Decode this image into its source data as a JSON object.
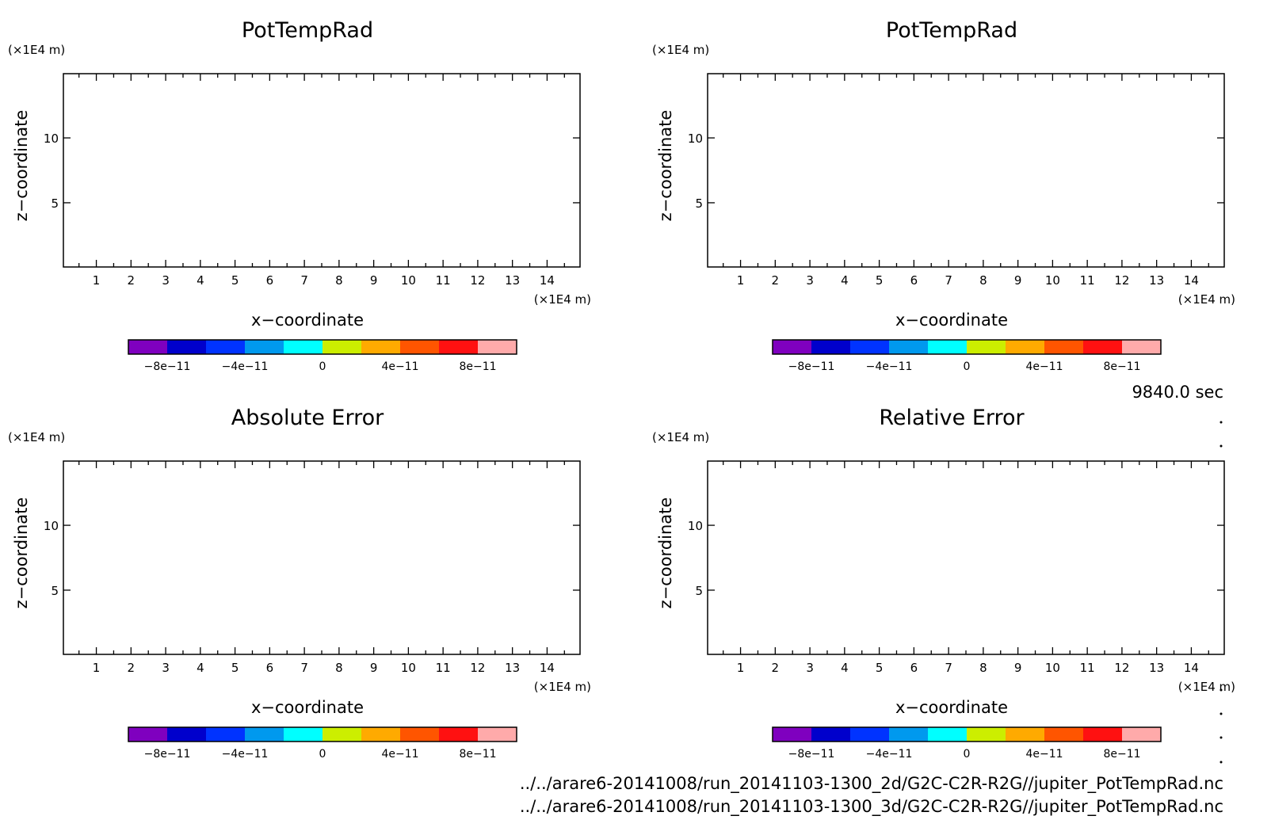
{
  "time_label": "9840.0 sec",
  "files": [
    "../../arare6-20141008/run_20141103-1300_2d/G2C-C2R-R2G//jupiter_PotTempRad.nc",
    "../../arare6-20141008/run_20141103-1300_3d/G2C-C2R-R2G//jupiter_PotTempRad.nc"
  ],
  "colorbar": {
    "colors": [
      "#7f00bf",
      "#0000cc",
      "#0033ff",
      "#0099ee",
      "#00ffff",
      "#ccee00",
      "#ffaa00",
      "#ff5500",
      "#ff1111",
      "#ffaaaa"
    ],
    "min": -1e-10,
    "max": 1e-10,
    "tick_values": [
      -8e-11,
      -4e-11,
      0,
      4e-11,
      8e-11
    ],
    "tick_labels": [
      "−8e−11",
      "−4e−11",
      "0",
      "4e−11",
      "8e−11"
    ]
  },
  "chart_data": [
    {
      "type": "heatmap",
      "title": "PotTempRad",
      "xlabel": "x−coordinate",
      "ylabel": "z−coordinate",
      "x_unit": "(×1E4 m)",
      "y_unit": "(×1E4 m)",
      "xlim": [
        0.05,
        14.95
      ],
      "ylim": [
        0.05,
        14.95
      ],
      "x_ticks": [
        1,
        2,
        3,
        4,
        5,
        6,
        7,
        8,
        9,
        10,
        11,
        12,
        13,
        14
      ],
      "y_ticks": [
        5,
        10
      ],
      "values": []
    },
    {
      "type": "heatmap",
      "title": "PotTempRad",
      "xlabel": "x−coordinate",
      "ylabel": "z−coordinate",
      "x_unit": "(×1E4 m)",
      "y_unit": "(×1E4 m)",
      "xlim": [
        0.05,
        14.95
      ],
      "ylim": [
        0.05,
        14.95
      ],
      "x_ticks": [
        1,
        2,
        3,
        4,
        5,
        6,
        7,
        8,
        9,
        10,
        11,
        12,
        13,
        14
      ],
      "y_ticks": [
        5,
        10
      ],
      "values": []
    },
    {
      "type": "heatmap",
      "title": "Absolute Error",
      "xlabel": "x−coordinate",
      "ylabel": "z−coordinate",
      "x_unit": "(×1E4 m)",
      "y_unit": "(×1E4 m)",
      "xlim": [
        0.05,
        14.95
      ],
      "ylim": [
        0.05,
        14.95
      ],
      "x_ticks": [
        1,
        2,
        3,
        4,
        5,
        6,
        7,
        8,
        9,
        10,
        11,
        12,
        13,
        14
      ],
      "y_ticks": [
        5,
        10
      ],
      "values": []
    },
    {
      "type": "heatmap",
      "title": "Relative Error",
      "xlabel": "x−coordinate",
      "ylabel": "z−coordinate",
      "x_unit": "(×1E4 m)",
      "y_unit": "(×1E4 m)",
      "xlim": [
        0.05,
        14.95
      ],
      "ylim": [
        0.05,
        14.95
      ],
      "x_ticks": [
        1,
        2,
        3,
        4,
        5,
        6,
        7,
        8,
        9,
        10,
        11,
        12,
        13,
        14
      ],
      "y_ticks": [
        5,
        10
      ],
      "values": []
    }
  ]
}
